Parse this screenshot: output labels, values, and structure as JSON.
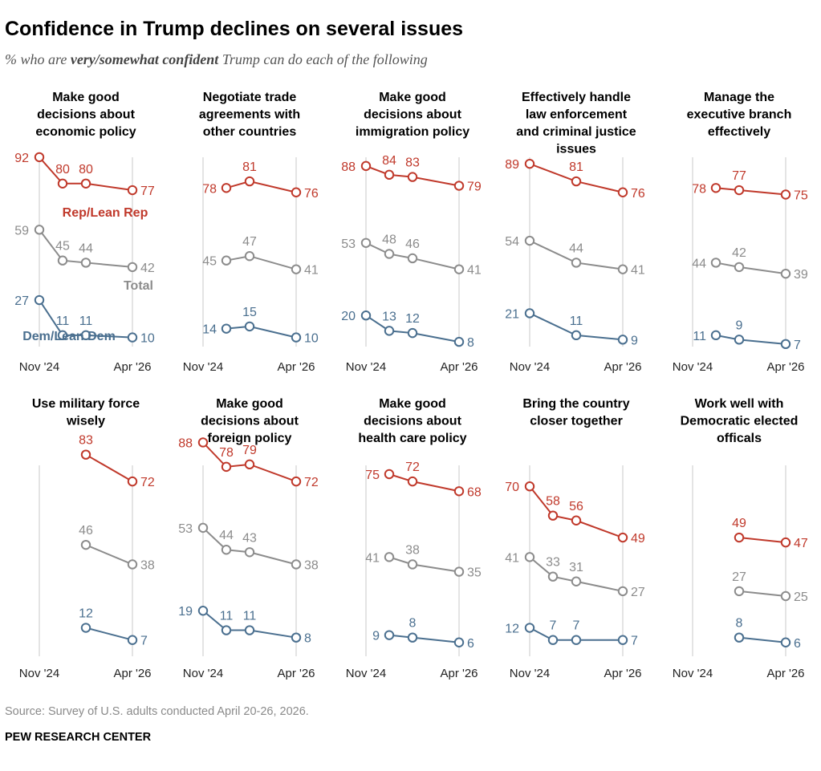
{
  "header": {
    "title": "Confidence in Trump declines on several issues",
    "subtitle_pre": "% who are ",
    "subtitle_em": "very/somewhat confident",
    "subtitle_post": " Trump can do each of the following"
  },
  "footer": {
    "source": "Source: Survey of U.S. adults conducted April 20-26, 2026.",
    "credit": "PEW RESEARCH CENTER"
  },
  "colors": {
    "rep": "#c0392b",
    "total": "#8c8c8c",
    "dem": "#4a6f8f",
    "axis": "#c8c8c8"
  },
  "chart_data": {
    "type": "line",
    "x_labels": [
      "Nov '24",
      "Apr '26"
    ],
    "series_labels": {
      "rep": "Rep/Lean Rep",
      "total": "Total",
      "dem": "Dem/Lean Dem"
    },
    "ylim": [
      0,
      100
    ],
    "grid": false,
    "panels": [
      {
        "title": [
          "Make good",
          "decisions about",
          "economic policy"
        ],
        "rep": [
          [
            0,
            92
          ],
          [
            1,
            80
          ],
          [
            2,
            80
          ],
          [
            4,
            77
          ]
        ],
        "total": [
          [
            0,
            59
          ],
          [
            1,
            45
          ],
          [
            2,
            44
          ],
          [
            4,
            42
          ]
        ],
        "dem": [
          [
            0,
            27
          ],
          [
            1,
            11
          ],
          [
            2,
            11
          ],
          [
            4,
            10
          ]
        ]
      },
      {
        "title": [
          "Negotiate trade",
          "agreements with",
          "other countries"
        ],
        "rep": [
          [
            1,
            78
          ],
          [
            2,
            81
          ],
          [
            4,
            76
          ]
        ],
        "total": [
          [
            1,
            45
          ],
          [
            2,
            47
          ],
          [
            4,
            41
          ]
        ],
        "dem": [
          [
            1,
            14
          ],
          [
            2,
            15
          ],
          [
            4,
            10
          ]
        ]
      },
      {
        "title": [
          "Make good",
          "decisions about",
          "immigration policy"
        ],
        "rep": [
          [
            0,
            88
          ],
          [
            1,
            84
          ],
          [
            2,
            83
          ],
          [
            4,
            79
          ]
        ],
        "total": [
          [
            0,
            53
          ],
          [
            1,
            48
          ],
          [
            2,
            46
          ],
          [
            4,
            41
          ]
        ],
        "dem": [
          [
            0,
            20
          ],
          [
            1,
            13
          ],
          [
            2,
            12
          ],
          [
            4,
            8
          ]
        ]
      },
      {
        "title": [
          "Effectively handle",
          "law enforcement",
          "and criminal justice",
          "issues"
        ],
        "rep": [
          [
            0,
            89
          ],
          [
            2,
            81
          ],
          [
            4,
            76
          ]
        ],
        "total": [
          [
            0,
            54
          ],
          [
            2,
            44
          ],
          [
            4,
            41
          ]
        ],
        "dem": [
          [
            0,
            21
          ],
          [
            2,
            11
          ],
          [
            4,
            9
          ]
        ]
      },
      {
        "title": [
          "Manage the",
          "executive branch",
          "effectively"
        ],
        "rep": [
          [
            1,
            78
          ],
          [
            2,
            77
          ],
          [
            4,
            75
          ]
        ],
        "total": [
          [
            1,
            44
          ],
          [
            2,
            42
          ],
          [
            4,
            39
          ]
        ],
        "dem": [
          [
            1,
            11
          ],
          [
            2,
            9
          ],
          [
            4,
            7
          ]
        ]
      },
      {
        "title": [
          "Use military force",
          "wisely"
        ],
        "rep": [
          [
            2,
            83
          ],
          [
            4,
            72
          ]
        ],
        "total": [
          [
            2,
            46
          ],
          [
            4,
            38
          ]
        ],
        "dem": [
          [
            2,
            12
          ],
          [
            4,
            7
          ]
        ]
      },
      {
        "title": [
          "Make good",
          "decisions about",
          "foreign policy"
        ],
        "rep": [
          [
            0,
            88
          ],
          [
            1,
            78
          ],
          [
            2,
            79
          ],
          [
            4,
            72
          ]
        ],
        "total": [
          [
            0,
            53
          ],
          [
            1,
            44
          ],
          [
            2,
            43
          ],
          [
            4,
            38
          ]
        ],
        "dem": [
          [
            0,
            19
          ],
          [
            1,
            11
          ],
          [
            2,
            11
          ],
          [
            4,
            8
          ]
        ]
      },
      {
        "title": [
          "Make good",
          "decisions about",
          "health care policy"
        ],
        "rep": [
          [
            1,
            75
          ],
          [
            2,
            72
          ],
          [
            4,
            68
          ]
        ],
        "total": [
          [
            1,
            41
          ],
          [
            2,
            38
          ],
          [
            4,
            35
          ]
        ],
        "dem": [
          [
            1,
            9
          ],
          [
            2,
            8
          ],
          [
            4,
            6
          ]
        ]
      },
      {
        "title": [
          "Bring the country",
          "closer together"
        ],
        "rep": [
          [
            0,
            70
          ],
          [
            1,
            58
          ],
          [
            2,
            56
          ],
          [
            4,
            49
          ]
        ],
        "total": [
          [
            0,
            41
          ],
          [
            1,
            33
          ],
          [
            2,
            31
          ],
          [
            4,
            27
          ]
        ],
        "dem": [
          [
            0,
            12
          ],
          [
            1,
            7
          ],
          [
            2,
            7
          ],
          [
            4,
            7
          ]
        ]
      },
      {
        "title": [
          "Work well with",
          "Democratic elected",
          "officals"
        ],
        "rep": [
          [
            2,
            49
          ],
          [
            4,
            47
          ]
        ],
        "total": [
          [
            2,
            27
          ],
          [
            4,
            25
          ]
        ],
        "dem": [
          [
            2,
            8
          ],
          [
            4,
            6
          ]
        ]
      }
    ]
  }
}
